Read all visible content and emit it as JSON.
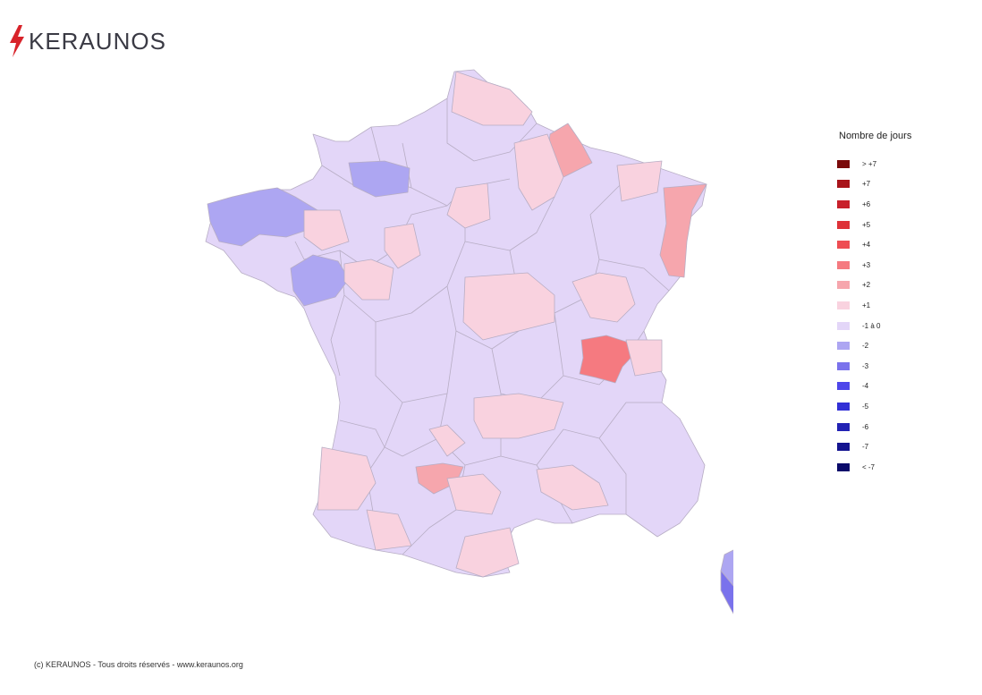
{
  "brand": {
    "name": "KERAUNOS",
    "accent": "#d8232a",
    "text_color": "#3a3a44"
  },
  "legend": {
    "title": "Nombre de jours",
    "items": [
      {
        "label": "> +7",
        "color": "#7a0a0a"
      },
      {
        "label": "+7",
        "color": "#a8141a"
      },
      {
        "label": "+6",
        "color": "#c8202a"
      },
      {
        "label": "+5",
        "color": "#de3238"
      },
      {
        "label": "+4",
        "color": "#ee4d52"
      },
      {
        "label": "+3",
        "color": "#f57a80"
      },
      {
        "label": "+2",
        "color": "#f6a6ad"
      },
      {
        "label": "+1",
        "color": "#f9d2df"
      },
      {
        "label": "-1 à 0",
        "color": "#e3d6f8"
      },
      {
        "label": "-2",
        "color": "#ada6f2"
      },
      {
        "label": "-3",
        "color": "#7a72ec"
      },
      {
        "label": "-4",
        "color": "#4e46ea"
      },
      {
        "label": "-5",
        "color": "#3230d6"
      },
      {
        "label": "-6",
        "color": "#2222b4"
      },
      {
        "label": "-7",
        "color": "#14148f"
      },
      {
        "label": "< -7",
        "color": "#0a0a6a"
      }
    ]
  },
  "map": {
    "base_class": "-1 à 0",
    "highlighted_regions": [
      {
        "area": "Bretagne (Finistère, Côtes-d'Armor)",
        "class": "-2"
      },
      {
        "area": "Calvados",
        "class": "-2"
      },
      {
        "area": "Loire-Atlantique",
        "class": "-2"
      },
      {
        "area": "Haute-Corse",
        "class": "-2"
      },
      {
        "area": "Corse-du-Sud",
        "class": "-3"
      },
      {
        "area": "Ain",
        "class": "+3"
      },
      {
        "area": "Ardennes",
        "class": "+2"
      },
      {
        "area": "Bas-Rhin / Haut-Rhin",
        "class": "+2"
      },
      {
        "area": "Tarn-et-Garonne",
        "class": "+2"
      }
    ]
  },
  "footer": {
    "copyright": "(c) KERAUNOS - Tous droits réservés - www.keraunos.org"
  }
}
